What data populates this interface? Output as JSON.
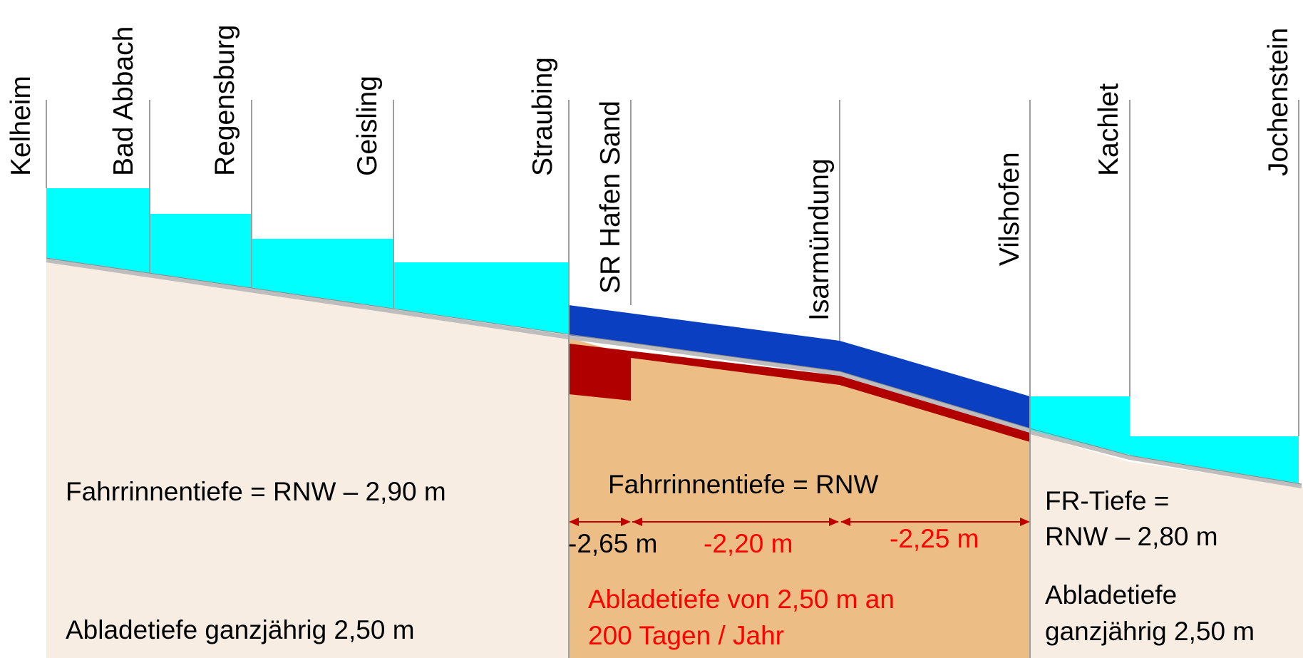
{
  "locations": [
    "Kelheim",
    "Bad  Abbach",
    "Regensburg",
    "Geisling",
    "Straubing",
    "SR Hafen Sand",
    "Isarmündung",
    "Vilshofen",
    "Kachlet",
    "Jochenstein"
  ],
  "left_section": {
    "depth": "Fahrrinnentiefe = RNW – 2,90 m",
    "draught": "Abladetiefe ganzjährig 2,50 m"
  },
  "middle_section": {
    "depth": "Fahrrinnentiefe = RNW",
    "segment_values": [
      "-2,65 m",
      "-2,20 m",
      "-2,25 m"
    ],
    "draught_line1": "Abladetiefe von 2,50 m an",
    "draught_line2": "200 Tagen / Jahr"
  },
  "right_section": {
    "depth_line1": "FR-Tiefe =",
    "depth_line2": "RNW – 2,80 m",
    "draught_line1": "Abladetiefe",
    "draught_line2": "ganzjährig 2,50 m"
  },
  "colors": {
    "ground_light": "#f8ede2",
    "ground_mid": "#ecbe85",
    "water_regulated": "#00ffff",
    "water_free": "#0a3fc2",
    "deepening": "#b00000",
    "riverbed": "#bdbdbd",
    "red_text": "#ff0000",
    "arrow": "#c00000"
  }
}
